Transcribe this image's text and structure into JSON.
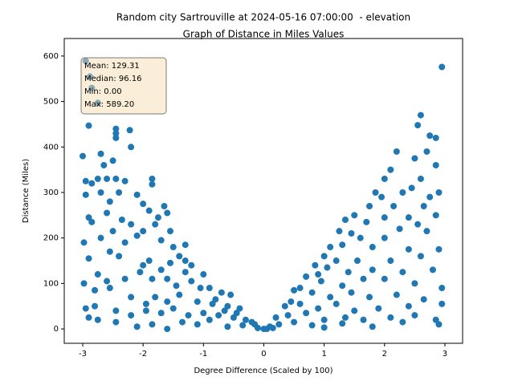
{
  "chart_data": {
    "type": "scatter",
    "title": [
      "Random city Sartrouville at 2024-05-16 07:00:00  - elevation",
      "Graph of Distance in Miles Values"
    ],
    "x_label": "Degree Difference (Scaled by 100)",
    "y_label": "Distance (Miles)",
    "stats": [
      "Mean: 129.31",
      "Median: 96.16",
      "Min: 0.00",
      "Max: 589.20"
    ],
    "color": "#1f77b4",
    "xlim": [
      -3.306,
      3.293
    ],
    "ylim": [
      -31.6,
      638.6
    ],
    "xticks": [
      -3,
      -2,
      -1,
      0,
      1,
      2,
      3
    ],
    "yticks": [
      0,
      100,
      200,
      300,
      400,
      500,
      600
    ],
    "x": [
      -2.95,
      -2.88,
      -2.85,
      -2.75,
      -2.9,
      -2.45,
      -2.45,
      -2.22,
      -2.2,
      -2.45,
      -3.0,
      -2.7,
      -2.65,
      -2.5,
      -2.95,
      -2.85,
      -2.75,
      -2.6,
      -2.45,
      -2.3,
      -1.85,
      -1.85,
      -2.95,
      -2.7,
      -2.55,
      -2.4,
      -2.1,
      -2.0,
      -1.9,
      -1.65,
      -1.6,
      -1.75,
      -2.9,
      -2.85,
      -2.6,
      -2.35,
      -2.2,
      -2.0,
      -1.8,
      -1.55,
      -2.98,
      -2.7,
      -2.5,
      -2.3,
      -2.1,
      -1.7,
      -1.5,
      -1.3,
      -2.9,
      -2.55,
      -2.4,
      -2.0,
      -1.9,
      -1.7,
      -1.4,
      -1.3,
      -1.2,
      -1.0,
      -2.75,
      -2.6,
      -2.3,
      -2.05,
      -1.85,
      -1.6,
      -1.45,
      -1.2,
      -0.9,
      -0.7,
      -0.55,
      -2.98,
      -2.8,
      -2.55,
      -2.2,
      -1.95,
      -1.8,
      -1.6,
      -1.4,
      -1.1,
      -0.85,
      -0.6,
      -0.4,
      -2.95,
      -2.8,
      -2.45,
      -2.2,
      -1.95,
      -1.7,
      -1.5,
      -1.25,
      -1.0,
      -0.75,
      -0.5,
      -0.3,
      -0.15,
      -2.9,
      -2.75,
      -2.45,
      -2.1,
      -1.85,
      -1.6,
      -1.35,
      -1.1,
      -0.9,
      -0.6,
      -0.35,
      -0.1,
      0.0,
      -0.2,
      -0.45,
      -0.65,
      -0.8,
      -1.05,
      -1.3,
      -1.55,
      2.95,
      2.6,
      2.55,
      2.85,
      2.75,
      2.7,
      2.2,
      2.5,
      2.85,
      2.1,
      2.0,
      2.6,
      2.45,
      1.85,
      2.3,
      2.9,
      2.75,
      1.95,
      2.65,
      2.15,
      1.75,
      2.4,
      2.0,
      1.5,
      1.35,
      2.55,
      2.85,
      1.7,
      1.25,
      2.25,
      1.6,
      1.45,
      2.0,
      2.7,
      1.1,
      1.3,
      1.8,
      2.4,
      2.9,
      1.0,
      1.2,
      1.55,
      2.1,
      2.6,
      0.85,
      1.05,
      1.4,
      1.8,
      2.3,
      2.8,
      0.7,
      0.95,
      1.3,
      1.65,
      2.0,
      2.5,
      2.95,
      0.5,
      0.8,
      1.1,
      1.45,
      1.75,
      2.2,
      2.65,
      0.35,
      0.6,
      0.9,
      1.2,
      1.5,
      1.9,
      2.4,
      2.95,
      0.2,
      0.4,
      0.7,
      1.0,
      1.35,
      1.65,
      2.1,
      2.5,
      2.85,
      0.1,
      0.25,
      0.5,
      0.8,
      1.0,
      1.3,
      1.8,
      2.3,
      2.9,
      0.05,
      0.15,
      0.45,
      0.6,
      0.9
    ],
    "values": [
      589,
      555,
      530,
      497,
      447,
      440,
      430,
      437,
      400,
      420,
      380,
      385,
      360,
      370,
      325,
      320,
      330,
      330,
      330,
      325,
      330,
      318,
      295,
      300,
      280,
      300,
      295,
      275,
      260,
      270,
      255,
      245,
      245,
      235,
      255,
      240,
      230,
      215,
      230,
      215,
      190,
      200,
      215,
      190,
      205,
      195,
      180,
      185,
      155,
      170,
      160,
      140,
      150,
      130,
      160,
      150,
      140,
      120,
      120,
      105,
      110,
      125,
      110,
      110,
      95,
      105,
      90,
      80,
      75,
      100,
      85,
      90,
      70,
      55,
      70,
      60,
      75,
      60,
      55,
      50,
      45,
      45,
      50,
      40,
      30,
      40,
      35,
      45,
      30,
      35,
      30,
      25,
      20,
      10,
      25,
      20,
      15,
      5,
      10,
      0,
      15,
      10,
      20,
      5,
      8,
      2,
      0,
      15,
      35,
      40,
      65,
      90,
      125,
      145,
      576,
      470,
      448,
      420,
      425,
      390,
      390,
      375,
      360,
      350,
      330,
      330,
      310,
      300,
      300,
      300,
      290,
      290,
      270,
      270,
      270,
      245,
      245,
      250,
      240,
      230,
      250,
      235,
      215,
      220,
      200,
      210,
      200,
      215,
      180,
      185,
      180,
      175,
      175,
      160,
      150,
      150,
      150,
      160,
      140,
      135,
      125,
      130,
      125,
      130,
      115,
      105,
      95,
      110,
      110,
      100,
      90,
      85,
      80,
      70,
      80,
      70,
      75,
      65,
      50,
      55,
      45,
      55,
      40,
      45,
      50,
      55,
      25,
      30,
      35,
      20,
      25,
      20,
      25,
      30,
      20,
      5,
      10,
      15,
      8,
      3,
      12,
      5,
      15,
      10,
      0,
      2,
      60,
      90,
      120
    ]
  }
}
